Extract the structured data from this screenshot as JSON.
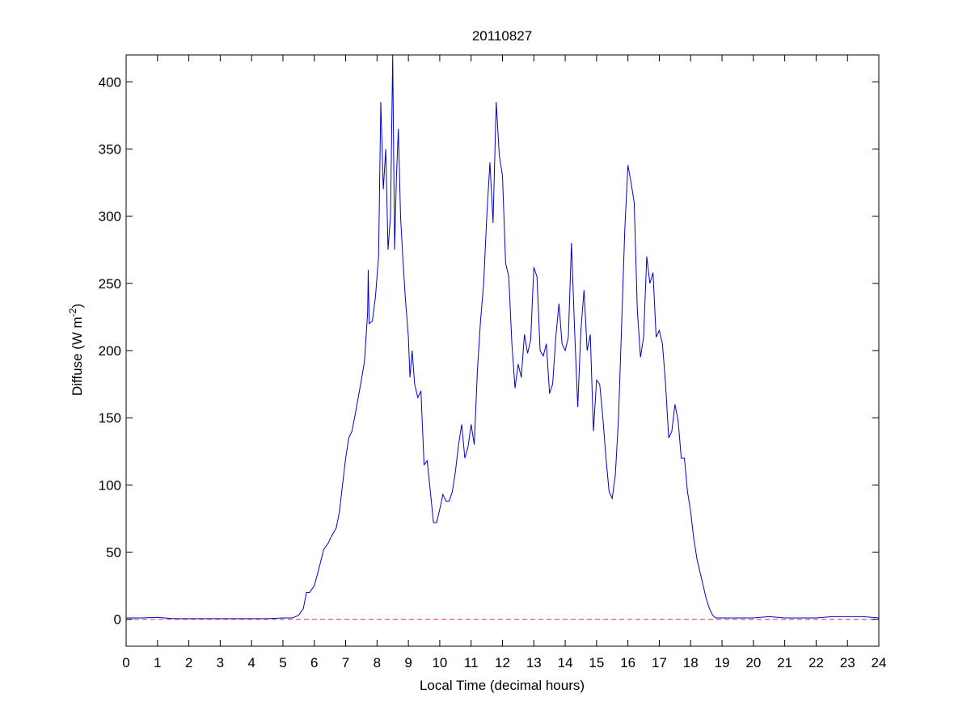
{
  "chart_data": {
    "type": "line",
    "title": "20110827",
    "xlabel": "Local Time (decimal hours)",
    "ylabel": "Diffuse (W m",
    "ylabel_superscript": "-2",
    "ylabel_close": ")",
    "xlim": [
      0,
      24
    ],
    "ylim": [
      -20,
      420
    ],
    "grid": false,
    "xticks": [
      0,
      1,
      2,
      3,
      4,
      5,
      6,
      7,
      8,
      9,
      10,
      11,
      12,
      13,
      14,
      15,
      16,
      17,
      18,
      19,
      20,
      21,
      22,
      23,
      24
    ],
    "yticks": [
      0,
      50,
      100,
      150,
      200,
      250,
      300,
      350,
      400
    ],
    "series": [
      {
        "color": "#0000cc",
        "style": "solid",
        "points": [
          [
            0,
            1
          ],
          [
            0.5,
            1
          ],
          [
            1,
            1.5
          ],
          [
            1.5,
            0.5
          ],
          [
            2,
            0.5
          ],
          [
            2.5,
            0.5
          ],
          [
            3,
            0.5
          ],
          [
            3.5,
            0.5
          ],
          [
            4,
            0.5
          ],
          [
            4.5,
            0.5
          ],
          [
            5,
            1
          ],
          [
            5.3,
            1
          ],
          [
            5.5,
            3
          ],
          [
            5.65,
            8
          ],
          [
            5.75,
            20
          ],
          [
            5.85,
            20
          ],
          [
            6,
            25
          ],
          [
            6.15,
            38
          ],
          [
            6.3,
            52
          ],
          [
            6.45,
            57
          ],
          [
            6.55,
            62
          ],
          [
            6.7,
            68
          ],
          [
            6.8,
            80
          ],
          [
            6.9,
            100
          ],
          [
            7.0,
            120
          ],
          [
            7.1,
            135
          ],
          [
            7.2,
            140
          ],
          [
            7.3,
            152
          ],
          [
            7.4,
            165
          ],
          [
            7.5,
            178
          ],
          [
            7.6,
            192
          ],
          [
            7.7,
            228
          ],
          [
            7.72,
            260
          ],
          [
            7.75,
            220
          ],
          [
            7.85,
            222
          ],
          [
            7.95,
            240
          ],
          [
            8.05,
            270
          ],
          [
            8.12,
            385
          ],
          [
            8.2,
            320
          ],
          [
            8.28,
            350
          ],
          [
            8.35,
            275
          ],
          [
            8.43,
            300
          ],
          [
            8.5,
            420
          ],
          [
            8.56,
            275
          ],
          [
            8.62,
            330
          ],
          [
            8.68,
            365
          ],
          [
            8.75,
            300
          ],
          [
            8.82,
            270
          ],
          [
            8.9,
            240
          ],
          [
            9.0,
            210
          ],
          [
            9.05,
            180
          ],
          [
            9.12,
            200
          ],
          [
            9.2,
            175
          ],
          [
            9.3,
            165
          ],
          [
            9.4,
            170
          ],
          [
            9.5,
            115
          ],
          [
            9.6,
            118
          ],
          [
            9.7,
            95
          ],
          [
            9.8,
            72
          ],
          [
            9.9,
            72
          ],
          [
            10.0,
            82
          ],
          [
            10.1,
            93
          ],
          [
            10.2,
            88
          ],
          [
            10.3,
            88
          ],
          [
            10.4,
            95
          ],
          [
            10.5,
            110
          ],
          [
            10.6,
            130
          ],
          [
            10.7,
            145
          ],
          [
            10.8,
            120
          ],
          [
            10.9,
            128
          ],
          [
            11.0,
            145
          ],
          [
            11.1,
            130
          ],
          [
            11.2,
            185
          ],
          [
            11.3,
            222
          ],
          [
            11.4,
            250
          ],
          [
            11.5,
            300
          ],
          [
            11.6,
            340
          ],
          [
            11.7,
            295
          ],
          [
            11.8,
            385
          ],
          [
            11.9,
            345
          ],
          [
            12.0,
            330
          ],
          [
            12.1,
            265
          ],
          [
            12.2,
            255
          ],
          [
            12.3,
            205
          ],
          [
            12.4,
            172
          ],
          [
            12.5,
            190
          ],
          [
            12.6,
            180
          ],
          [
            12.7,
            212
          ],
          [
            12.8,
            198
          ],
          [
            12.9,
            208
          ],
          [
            13.0,
            262
          ],
          [
            13.1,
            255
          ],
          [
            13.2,
            200
          ],
          [
            13.3,
            196
          ],
          [
            13.4,
            205
          ],
          [
            13.5,
            168
          ],
          [
            13.6,
            175
          ],
          [
            13.7,
            210
          ],
          [
            13.8,
            235
          ],
          [
            13.9,
            205
          ],
          [
            14.0,
            200
          ],
          [
            14.1,
            210
          ],
          [
            14.2,
            280
          ],
          [
            14.3,
            215
          ],
          [
            14.4,
            158
          ],
          [
            14.5,
            215
          ],
          [
            14.6,
            245
          ],
          [
            14.7,
            200
          ],
          [
            14.8,
            212
          ],
          [
            14.9,
            140
          ],
          [
            15.0,
            178
          ],
          [
            15.1,
            175
          ],
          [
            15.2,
            150
          ],
          [
            15.3,
            120
          ],
          [
            15.4,
            95
          ],
          [
            15.5,
            90
          ],
          [
            15.6,
            108
          ],
          [
            15.7,
            150
          ],
          [
            15.8,
            220
          ],
          [
            15.9,
            290
          ],
          [
            16.0,
            338
          ],
          [
            16.1,
            325
          ],
          [
            16.2,
            310
          ],
          [
            16.3,
            230
          ],
          [
            16.4,
            195
          ],
          [
            16.5,
            210
          ],
          [
            16.6,
            270
          ],
          [
            16.7,
            250
          ],
          [
            16.8,
            258
          ],
          [
            16.9,
            210
          ],
          [
            17.0,
            215
          ],
          [
            17.1,
            205
          ],
          [
            17.2,
            175
          ],
          [
            17.3,
            135
          ],
          [
            17.4,
            140
          ],
          [
            17.5,
            160
          ],
          [
            17.6,
            148
          ],
          [
            17.7,
            120
          ],
          [
            17.8,
            120
          ],
          [
            17.9,
            95
          ],
          [
            18.0,
            80
          ],
          [
            18.1,
            60
          ],
          [
            18.2,
            45
          ],
          [
            18.3,
            35
          ],
          [
            18.4,
            25
          ],
          [
            18.5,
            15
          ],
          [
            18.6,
            8
          ],
          [
            18.7,
            3
          ],
          [
            18.8,
            1
          ],
          [
            19.0,
            1
          ],
          [
            19.5,
            1
          ],
          [
            20.0,
            1
          ],
          [
            20.5,
            2
          ],
          [
            21.0,
            1
          ],
          [
            21.5,
            1
          ],
          [
            22.0,
            1
          ],
          [
            22.5,
            2
          ],
          [
            23.0,
            2
          ],
          [
            23.5,
            2
          ],
          [
            24,
            1
          ]
        ]
      },
      {
        "color": "#e0304a",
        "style": "dashed",
        "points": [
          [
            0,
            0
          ],
          [
            24,
            0
          ]
        ]
      }
    ]
  }
}
